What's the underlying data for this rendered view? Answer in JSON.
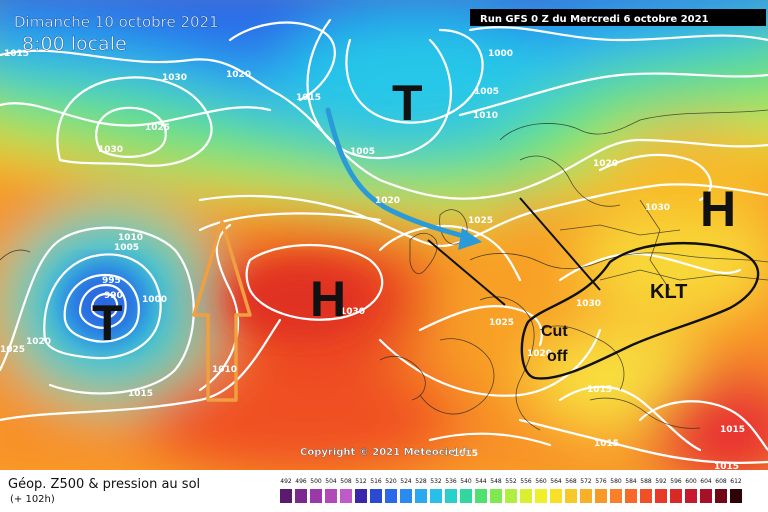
{
  "header": {
    "date_line": "Dimanche 10 octobre 2021",
    "time_line": "8:00 locale",
    "run_info": "Run GFS 0 Z du Mercredi 6 octobre 2021"
  },
  "copyright": "Copyright © 2021 Meteociel.fr",
  "legend": {
    "title": "Géop. Z500 & pression au sol",
    "subtitle": "(+ 102h)",
    "scale_values": [
      "492",
      "496",
      "500",
      "504",
      "508",
      "512",
      "516",
      "520",
      "524",
      "528",
      "532",
      "536",
      "540",
      "544",
      "548",
      "552",
      "556",
      "560",
      "564",
      "568",
      "572",
      "576",
      "580",
      "584",
      "588",
      "592",
      "596",
      "600",
      "604",
      "608",
      "612"
    ],
    "scale_colors": [
      "#5a1a6e",
      "#7a2a8e",
      "#9a3aa8",
      "#b04ab8",
      "#c05ac8",
      "#3a28a8",
      "#2a4ad0",
      "#2a6ae8",
      "#2a8af0",
      "#2aa8f0",
      "#28c0e8",
      "#28d0c8",
      "#30d8a0",
      "#50e070",
      "#80e850",
      "#b0ee40",
      "#d8f030",
      "#f0f028",
      "#f8e028",
      "#f8c828",
      "#f8b028",
      "#f89828",
      "#f88028",
      "#f86828",
      "#f05028",
      "#e83828",
      "#d82828",
      "#c81830",
      "#a81028",
      "#700818",
      "#300008"
    ]
  },
  "systems": {
    "low_north_atlantic": "T",
    "low_west_atlantic": "T",
    "high_central_atlantic": "H",
    "high_russia": "H",
    "klt_label": "KLT",
    "cutoff_label_1": "Cut",
    "cutoff_label_2": "off"
  },
  "isobar_labels": [
    "1015",
    "1030",
    "1020",
    "1025",
    "1030",
    "1015",
    "1000",
    "1005",
    "1010",
    "1005",
    "1020",
    "1025",
    "1020",
    "1030",
    "1010",
    "1005",
    "995",
    "990",
    "1000",
    "1025",
    "1020",
    "1030",
    "1025",
    "1030",
    "1020",
    "1015",
    "1015",
    "1015",
    "1015",
    "1015",
    "1015",
    "1010"
  ],
  "colors": {
    "arrow_blue": "#2a9ad8",
    "arrow_orange": "#f0a040",
    "isobar": "#ffffff",
    "annotation": "#111111"
  }
}
